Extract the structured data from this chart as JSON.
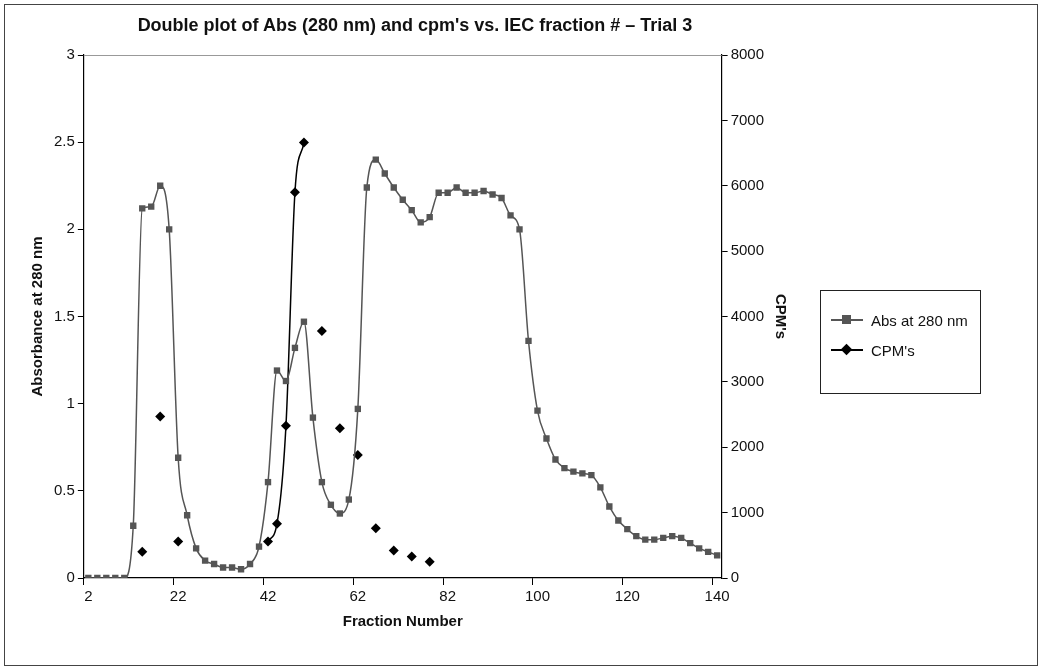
{
  "chart_data": {
    "type": "line",
    "title": "Double plot of Abs (280 nm) and cpm's vs. IEC fraction # – Trial 3",
    "xlabel": "Fraction Number",
    "ylabel": "Absorbance at 280 nm",
    "y2label": "CPM's",
    "categories": [
      "2",
      null,
      null,
      null,
      null,
      null,
      null,
      null,
      null,
      null,
      "22",
      null,
      null,
      null,
      null,
      null,
      null,
      null,
      null,
      null,
      "42",
      null,
      null,
      null,
      null,
      null,
      null,
      null,
      null,
      null,
      "62",
      null,
      null,
      null,
      null,
      null,
      null,
      null,
      null,
      null,
      "82",
      null,
      null,
      null,
      null,
      null,
      null,
      null,
      null,
      null,
      "100",
      null,
      null,
      null,
      null,
      null,
      null,
      null,
      null,
      null,
      "120",
      null,
      null,
      null,
      null,
      null,
      null,
      null,
      null,
      null,
      "140"
    ],
    "series": [
      {
        "name": "Abs at 280 nm",
        "color": "#555555",
        "marker": "square",
        "values": [
          0,
          0,
          0,
          0,
          0,
          0.3,
          2.12,
          2.13,
          2.25,
          2.0,
          0.69,
          0.36,
          0.17,
          0.1,
          0.08,
          0.06,
          0.06,
          0.05,
          0.08,
          0.18,
          0.55,
          1.19,
          1.13,
          1.32,
          1.47,
          0.92,
          0.55,
          0.42,
          0.37,
          0.45,
          0.97,
          2.24,
          2.4,
          2.32,
          2.24,
          2.17,
          2.11,
          2.04,
          2.07,
          2.21,
          2.21,
          2.24,
          2.21,
          2.21,
          2.22,
          2.2,
          2.18,
          2.08,
          2.0,
          1.36,
          0.96,
          0.8,
          0.68,
          0.63,
          0.61,
          0.6,
          0.59,
          0.52,
          0.41,
          0.33,
          0.28,
          0.24,
          0.22,
          0.22,
          0.23,
          0.24,
          0.23,
          0.2,
          0.17,
          0.15,
          0.13
        ]
      },
      {
        "name": "CPM's",
        "color": "#000000",
        "marker": "diamond",
        "axis": "y2",
        "values": [
          null,
          null,
          null,
          null,
          null,
          null,
          400,
          null,
          2470,
          null,
          560,
          null,
          null,
          null,
          null,
          null,
          null,
          null,
          null,
          null,
          560,
          830,
          2330,
          5900,
          6660,
          null,
          3780,
          null,
          2290,
          null,
          1880,
          null,
          760,
          null,
          420,
          null,
          330,
          null,
          250,
          null,
          null,
          null,
          null,
          null,
          null,
          null,
          null,
          null,
          null,
          null,
          null,
          null,
          null,
          null,
          null,
          null,
          null,
          null,
          null,
          null,
          null,
          null,
          null,
          null,
          null,
          null,
          null,
          null,
          null,
          null,
          null
        ]
      }
    ],
    "ylim": [
      0,
      3
    ],
    "yticks": [
      0,
      0.5,
      1,
      1.5,
      2,
      2.5,
      3
    ],
    "y2lim": [
      0,
      8000
    ],
    "y2ticks": [
      0,
      1000,
      2000,
      3000,
      4000,
      5000,
      6000,
      7000,
      8000
    ],
    "legend": "right"
  }
}
